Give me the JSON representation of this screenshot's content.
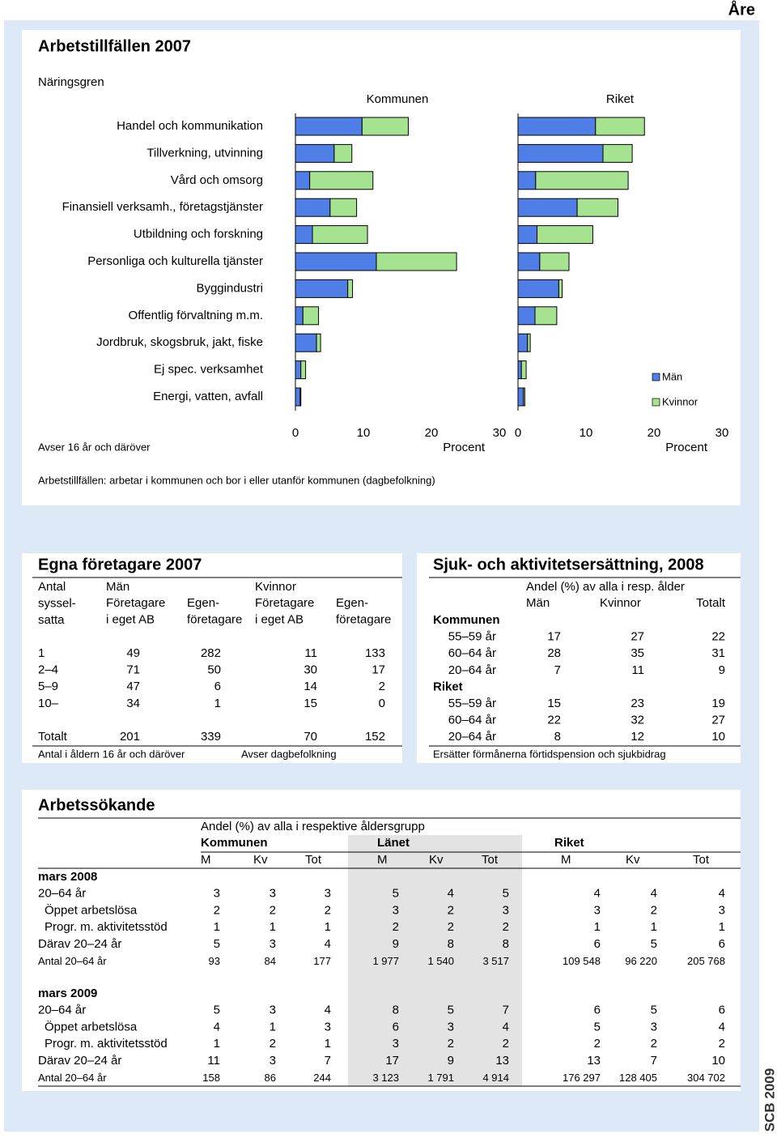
{
  "header": {
    "place": "Åre"
  },
  "arbetstillfallen": {
    "title": "Arbetstillfällen 2007",
    "footnote": "Avser 16 år och däröver",
    "note": "Arbetstillfällen: arbetar i kommunen och bor i eller utanför kommunen (dagbefolkning)"
  },
  "chart_data": [
    {
      "type": "bar",
      "orientation": "horizontal",
      "stacked": true,
      "title": "Kommunen",
      "ylabel": "Näringsgren",
      "categories": [
        "Handel och kommunikation",
        "Tillverkning, utvinning",
        "Vård och omsorg",
        "Finansiell verksamh., företagstjänster",
        "Utbildning och forskning",
        "Personliga och kulturella tjänster",
        "Byggindustri",
        "Offentlig förvaltning m.m.",
        "Jordbruk, skogsbruk, jakt, fiske",
        "Ej spec. verksamhet",
        "Energi, vatten, avfall"
      ],
      "series": [
        {
          "color": "#4f7fe6",
          "values": [
            9.8,
            5.7,
            2.1,
            5.1,
            2.5,
            11.9,
            7.7,
            1.1,
            3.1,
            0.8,
            0.7
          ]
        },
        {
          "color": "#a6e391",
          "values": [
            6.8,
            2.6,
            9.3,
            3.9,
            8.1,
            11.8,
            0.7,
            2.3,
            0.6,
            0.7,
            0.1
          ]
        }
      ],
      "xlim": [
        0,
        30
      ],
      "xticks": [
        0,
        10,
        20,
        30
      ],
      "xlabel": "Procent"
    },
    {
      "type": "bar",
      "orientation": "horizontal",
      "stacked": true,
      "title": "Riket",
      "series": [
        {
          "name": "Män",
          "color": "#4f7fe6",
          "values": [
            11.4,
            12.5,
            2.6,
            8.7,
            2.8,
            3.2,
            6.0,
            2.5,
            1.4,
            0.5,
            0.8
          ]
        },
        {
          "name": "Kvinnor",
          "color": "#a6e391",
          "values": [
            7.2,
            4.3,
            13.6,
            6.0,
            8.2,
            4.3,
            0.5,
            3.2,
            0.4,
            0.7,
            0.2
          ]
        }
      ],
      "legend": "right",
      "xlim": [
        0,
        30
      ],
      "xticks": [
        0,
        10,
        20,
        30
      ],
      "xlabel": "Procent"
    }
  ],
  "egna_foretagare": {
    "title": "Egna företagare 2007",
    "stub_head": [
      "Antal",
      "syssel-",
      "satta"
    ],
    "groups": [
      "Män",
      "Kvinnor"
    ],
    "subheads": [
      [
        "Företagare",
        "i eget AB"
      ],
      [
        "Egen-",
        "företagare"
      ]
    ],
    "rows": [
      [
        "1",
        49,
        282,
        11,
        133
      ],
      [
        "2–4",
        71,
        50,
        30,
        17
      ],
      [
        "5–9",
        47,
        6,
        14,
        2
      ],
      [
        "10–",
        34,
        1,
        15,
        0
      ]
    ],
    "total": [
      "Totalt",
      201,
      339,
      70,
      152
    ],
    "footnotes": [
      "Antal i åldern 16 år och däröver",
      "Avser dagbefolkning"
    ]
  },
  "sjuk_aktivitetsersattning": {
    "title": "Sjuk- och aktivitetsersättning, 2008",
    "subtitle": "Andel (%) av alla i resp. ålder",
    "columns": [
      "Män",
      "Kvinnor",
      "Totalt"
    ],
    "groups": [
      {
        "name": "Kommunen",
        "rows": [
          [
            "55–59 år",
            17,
            27,
            22
          ],
          [
            "60–64 år",
            28,
            35,
            31
          ],
          [
            "20–64 år",
            7,
            11,
            9
          ]
        ]
      },
      {
        "name": "Riket",
        "rows": [
          [
            "55–59 år",
            15,
            23,
            19
          ],
          [
            "60–64 år",
            22,
            32,
            27
          ],
          [
            "20–64 år",
            8,
            12,
            10
          ]
        ]
      }
    ],
    "footnote": "Ersätter förmånerna förtidspension och sjukbidrag"
  },
  "arbetssokande": {
    "title": "Arbetssökande",
    "subtitle": "Andel (%) av alla i respektive åldersgrupp",
    "regions": [
      "Kommunen",
      "Länet",
      "Riket"
    ],
    "columns": [
      "M",
      "Kv",
      "Tot"
    ],
    "periods": [
      {
        "name": "mars 2008",
        "rows": [
          [
            "20–64 år",
            3,
            3,
            3,
            5,
            4,
            5,
            4,
            4,
            4
          ],
          [
            "Öppet arbetslösa",
            2,
            2,
            2,
            3,
            2,
            3,
            3,
            2,
            3
          ],
          [
            "Progr. m. aktivitetsstöd",
            1,
            1,
            1,
            2,
            2,
            2,
            1,
            1,
            1
          ],
          [
            "Därav 20–24 år",
            5,
            3,
            4,
            9,
            8,
            8,
            6,
            5,
            6
          ],
          [
            "Antal 20–64 år",
            93,
            84,
            177,
            "1 977",
            "1 540",
            "3 517",
            "109 548",
            "96 220",
            "205 768"
          ]
        ]
      },
      {
        "name": "mars 2009",
        "rows": [
          [
            "20–64 år",
            5,
            3,
            4,
            8,
            5,
            7,
            6,
            5,
            6
          ],
          [
            "Öppet arbetslösa",
            4,
            1,
            3,
            6,
            3,
            4,
            5,
            3,
            4
          ],
          [
            "Progr. m. aktivitetsstöd",
            1,
            2,
            1,
            3,
            2,
            2,
            2,
            2,
            2
          ],
          [
            "Därav 20–24 år",
            11,
            3,
            7,
            17,
            9,
            13,
            13,
            7,
            10
          ],
          [
            "Antal 20–64 år",
            158,
            86,
            244,
            "3 123",
            "1 791",
            "4 914",
            "176 297",
            "128 405",
            "304 702"
          ]
        ]
      }
    ]
  },
  "footer": {
    "source": "SCB 2009"
  }
}
